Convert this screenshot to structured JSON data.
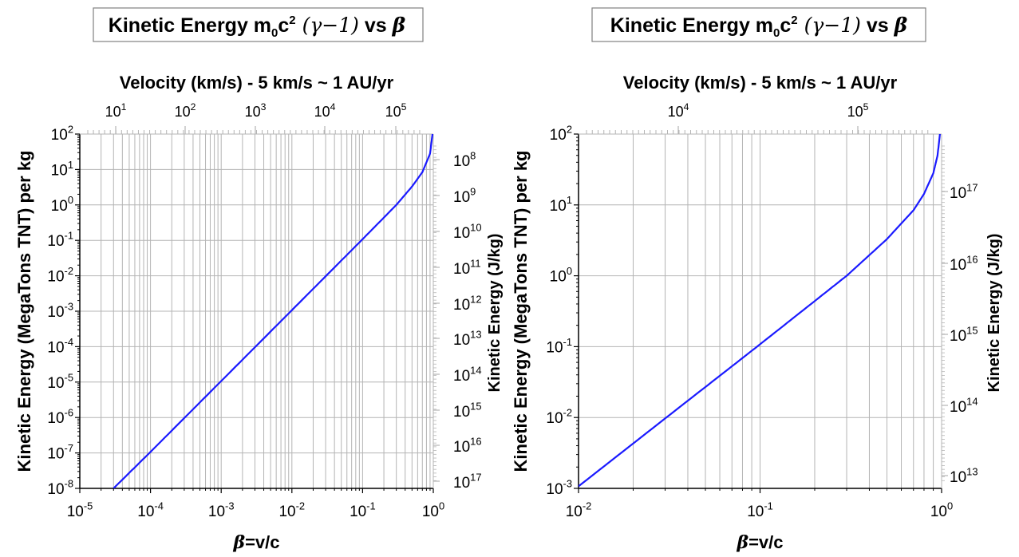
{
  "colors": {
    "curve": "#1a1aff",
    "grid": "#b4b4b4",
    "axis": "#000000",
    "box": "#808080"
  },
  "chart_data": [
    {
      "type": "line",
      "title": {
        "main": "Kinetic Energy m",
        "sub0": "0",
        "mid": "c",
        "sup2": "2",
        "gamma": "(γ−1)",
        "vs": " vs ",
        "beta": "β"
      },
      "x_axis": {
        "scale": "log",
        "range": [
          1e-05,
          1
        ],
        "label_beta": "β",
        "label_rest": "=v/c",
        "tick_bases": [
          "10",
          "10",
          "10",
          "10",
          "10",
          "10"
        ],
        "tick_exps": [
          "-5",
          "-4",
          "-3",
          "-2",
          "-1",
          "0"
        ]
      },
      "y_axis": {
        "scale": "log",
        "range": [
          1e-08,
          100
        ],
        "label": "Kinetic Energy (MegaTons TNT) per kg",
        "tick_bases": [
          "10",
          "10",
          "10",
          "10",
          "10",
          "10",
          "10",
          "10",
          "10",
          "10",
          "10"
        ],
        "tick_exps": [
          "-8",
          "-7",
          "-6",
          "-5",
          "-4",
          "-3",
          "-2",
          "-1",
          "0",
          "1",
          "2"
        ]
      },
      "top_axis": {
        "scale": "log",
        "label": "Velocity (km/s) - 5 km/s ~ 1 AU/yr",
        "tick_bases": [
          "10",
          "10",
          "10",
          "10",
          "10"
        ],
        "tick_exps": [
          "1",
          "2",
          "3",
          "4",
          "5"
        ]
      },
      "right_axis": {
        "scale": "log",
        "label": "Kinetic Energy (J/kg)",
        "tick_bases": [
          "10",
          "10",
          "10",
          "10",
          "10",
          "10",
          "10",
          "10",
          "10",
          "10"
        ],
        "tick_exps": [
          "8",
          "9",
          "10",
          "11",
          "12",
          "13",
          "14",
          "15",
          "16",
          "17"
        ]
      },
      "series": [
        {
          "x": [
            3e-05,
            0.0001,
            0.001,
            0.01,
            0.1,
            0.3,
            0.5,
            0.7,
            0.9,
            0.99,
            0.9999
          ],
          "y": [
            1e-08,
            1.07e-07,
            1.07e-05,
            0.00107,
            0.108,
            1.0,
            3.3,
            8.4,
            28,
            130,
            1400
          ]
        }
      ],
      "grid": true
    },
    {
      "type": "line",
      "title": {
        "main": "Kinetic Energy m",
        "sub0": "0",
        "mid": "c",
        "sup2": "2",
        "gamma": "(γ−1)",
        "vs": " vs ",
        "beta": "β"
      },
      "x_axis": {
        "scale": "log",
        "range": [
          0.01,
          1
        ],
        "label_beta": "β",
        "label_rest": "=v/c",
        "tick_bases": [
          "10",
          "10",
          "10"
        ],
        "tick_exps": [
          "-2",
          "-1",
          "0"
        ]
      },
      "y_axis": {
        "scale": "log",
        "range": [
          0.001,
          100
        ],
        "label": "Kinetic Energy (MegaTons TNT) per kg",
        "tick_bases": [
          "10",
          "10",
          "10",
          "10",
          "10",
          "10"
        ],
        "tick_exps": [
          "-3",
          "-2",
          "-1",
          "0",
          "1",
          "2"
        ]
      },
      "top_axis": {
        "scale": "log",
        "label": "Velocity (km/s) - 5 km/s ~ 1 AU/yr",
        "tick_bases": [
          "10",
          "10"
        ],
        "tick_exps": [
          "4",
          "5"
        ]
      },
      "right_axis": {
        "scale": "log",
        "label": "Kinetic Energy (J/kg)",
        "tick_bases": [
          "10",
          "10",
          "10",
          "10",
          "10"
        ],
        "tick_exps": [
          "13",
          "14",
          "15",
          "16",
          "17"
        ]
      },
      "series": [
        {
          "x": [
            0.01,
            0.03,
            0.1,
            0.2,
            0.3,
            0.5,
            0.7,
            0.8,
            0.9,
            0.95,
            0.99,
            0.9999
          ],
          "y": [
            0.00107,
            0.0097,
            0.108,
            0.44,
            1.0,
            3.3,
            8.4,
            14.3,
            28,
            50,
            130,
            1400
          ]
        }
      ],
      "grid": true
    }
  ]
}
